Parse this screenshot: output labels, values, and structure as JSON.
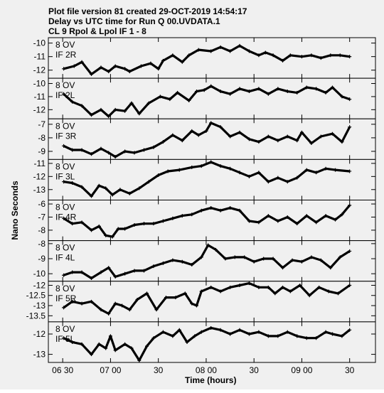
{
  "header": {
    "line1": "Plot file version 81  created 29-OCT-2019 14:54:17",
    "line2": "Delay vs UTC time for Run Q 00.UVDATA.1",
    "line3": "CL 9  Rpol & Lpol  IF 1 - 8"
  },
  "chart_data": {
    "type": "line",
    "xlabel": "Time (hours)",
    "ylabel": "Nano Seconds",
    "xlim": [
      6.35,
      9.77
    ],
    "xticks": [
      {
        "value": 6.5,
        "label": "06 30"
      },
      {
        "value": 7.0,
        "label": "07 00"
      },
      {
        "value": 7.5,
        "label": "30"
      },
      {
        "value": 8.0,
        "label": "08 00"
      },
      {
        "value": 8.5,
        "label": "30"
      },
      {
        "value": 9.0,
        "label": "09 00"
      },
      {
        "value": 9.5,
        "label": "30"
      }
    ],
    "panels": [
      {
        "label1": "8 OV",
        "label2": "IF 2R",
        "ylim": [
          -9.6,
          -12.6
        ],
        "yticks": [
          -10,
          -11,
          -12
        ],
        "points": [
          [
            6.51,
            -11.9
          ],
          [
            6.62,
            -11.7
          ],
          [
            6.7,
            -11.4
          ],
          [
            6.8,
            -12.3
          ],
          [
            6.9,
            -11.8
          ],
          [
            6.98,
            -12.1
          ],
          [
            7.05,
            -11.7
          ],
          [
            7.15,
            -11.9
          ],
          [
            7.2,
            -12.1
          ],
          [
            7.32,
            -11.7
          ],
          [
            7.42,
            -11.5
          ],
          [
            7.5,
            -11.9
          ],
          [
            7.55,
            -11.3
          ],
          [
            7.65,
            -10.9
          ],
          [
            7.75,
            -11.4
          ],
          [
            7.82,
            -10.9
          ],
          [
            7.92,
            -10.5
          ],
          [
            8.05,
            -10.6
          ],
          [
            8.15,
            -10.3
          ],
          [
            8.25,
            -10.6
          ],
          [
            8.35,
            -10.2
          ],
          [
            8.45,
            -10.6
          ],
          [
            8.55,
            -10.9
          ],
          [
            8.62,
            -10.7
          ],
          [
            8.7,
            -10.9
          ],
          [
            8.8,
            -11.3
          ],
          [
            8.88,
            -10.9
          ],
          [
            9.0,
            -11.0
          ],
          [
            9.1,
            -10.9
          ],
          [
            9.2,
            -11.1
          ],
          [
            9.3,
            -10.9
          ],
          [
            9.4,
            -10.9
          ],
          [
            9.5,
            -11.0
          ]
        ]
      },
      {
        "label1": "8 OV",
        "label2": "IF 2L",
        "ylim": [
          -9.6,
          -12.7
        ],
        "yticks": [
          -10,
          -11,
          -12
        ],
        "points": [
          [
            6.51,
            -10.8
          ],
          [
            6.6,
            -11.4
          ],
          [
            6.7,
            -11.7
          ],
          [
            6.8,
            -12.4
          ],
          [
            6.9,
            -12.0
          ],
          [
            6.98,
            -12.5
          ],
          [
            7.05,
            -12.0
          ],
          [
            7.15,
            -12.1
          ],
          [
            7.22,
            -11.5
          ],
          [
            7.3,
            -12.3
          ],
          [
            7.4,
            -11.5
          ],
          [
            7.52,
            -11.0
          ],
          [
            7.62,
            -11.2
          ],
          [
            7.7,
            -10.7
          ],
          [
            7.82,
            -11.3
          ],
          [
            7.9,
            -10.6
          ],
          [
            7.98,
            -10.5
          ],
          [
            8.05,
            -10.2
          ],
          [
            8.15,
            -10.6
          ],
          [
            8.25,
            -10.8
          ],
          [
            8.35,
            -10.4
          ],
          [
            8.45,
            -10.6
          ],
          [
            8.55,
            -10.4
          ],
          [
            8.65,
            -10.8
          ],
          [
            8.75,
            -10.4
          ],
          [
            8.85,
            -10.6
          ],
          [
            8.95,
            -10.7
          ],
          [
            9.05,
            -10.3
          ],
          [
            9.15,
            -10.4
          ],
          [
            9.25,
            -10.7
          ],
          [
            9.32,
            -10.3
          ],
          [
            9.42,
            -11.0
          ],
          [
            9.5,
            -11.2
          ]
        ]
      },
      {
        "label1": "8 OV",
        "label2": "IF 3R",
        "ylim": [
          -6.6,
          -9.6
        ],
        "yticks": [
          -7,
          -8,
          -9
        ],
        "points": [
          [
            6.51,
            -8.6
          ],
          [
            6.6,
            -8.9
          ],
          [
            6.7,
            -8.9
          ],
          [
            6.8,
            -9.2
          ],
          [
            6.9,
            -8.8
          ],
          [
            6.98,
            -9.1
          ],
          [
            7.05,
            -9.4
          ],
          [
            7.15,
            -9.0
          ],
          [
            7.25,
            -9.1
          ],
          [
            7.35,
            -8.9
          ],
          [
            7.45,
            -8.7
          ],
          [
            7.55,
            -8.3
          ],
          [
            7.65,
            -7.8
          ],
          [
            7.75,
            -8.2
          ],
          [
            7.85,
            -7.5
          ],
          [
            7.92,
            -7.8
          ],
          [
            8.0,
            -7.5
          ],
          [
            8.05,
            -6.9
          ],
          [
            8.15,
            -7.2
          ],
          [
            8.25,
            -7.9
          ],
          [
            8.35,
            -7.6
          ],
          [
            8.45,
            -8.1
          ],
          [
            8.55,
            -8.3
          ],
          [
            8.65,
            -7.9
          ],
          [
            8.75,
            -8.2
          ],
          [
            8.85,
            -7.9
          ],
          [
            8.95,
            -8.2
          ],
          [
            9.0,
            -7.6
          ],
          [
            9.1,
            -8.4
          ],
          [
            9.2,
            -7.9
          ],
          [
            9.32,
            -7.7
          ],
          [
            9.42,
            -8.3
          ],
          [
            9.5,
            -7.2
          ]
        ]
      },
      {
        "label1": "8 OV",
        "label2": "IF 3L",
        "ylim": [
          -10.7,
          -13.8
        ],
        "yticks": [
          -11,
          -12,
          -13
        ],
        "points": [
          [
            6.51,
            -12.4
          ],
          [
            6.6,
            -12.5
          ],
          [
            6.7,
            -12.8
          ],
          [
            6.8,
            -13.5
          ],
          [
            6.88,
            -12.7
          ],
          [
            6.95,
            -12.9
          ],
          [
            7.02,
            -13.4
          ],
          [
            7.1,
            -13.0
          ],
          [
            7.2,
            -13.3
          ],
          [
            7.3,
            -12.9
          ],
          [
            7.4,
            -12.4
          ],
          [
            7.5,
            -11.9
          ],
          [
            7.6,
            -11.6
          ],
          [
            7.72,
            -11.5
          ],
          [
            7.85,
            -11.3
          ],
          [
            7.95,
            -11.2
          ],
          [
            8.05,
            -10.9
          ],
          [
            8.15,
            -11.2
          ],
          [
            8.25,
            -11.4
          ],
          [
            8.35,
            -11.7
          ],
          [
            8.45,
            -12.0
          ],
          [
            8.55,
            -11.7
          ],
          [
            8.65,
            -12.4
          ],
          [
            8.75,
            -12.1
          ],
          [
            8.85,
            -12.4
          ],
          [
            8.95,
            -12.1
          ],
          [
            9.05,
            -11.5
          ],
          [
            9.15,
            -11.7
          ],
          [
            9.25,
            -11.4
          ],
          [
            9.35,
            -11.5
          ],
          [
            9.5,
            -11.6
          ]
        ]
      },
      {
        "label1": "8 OV",
        "label2": "IF 4R",
        "ylim": [
          -5.7,
          -8.8
        ],
        "yticks": [
          -6,
          -7,
          -8
        ],
        "points": [
          [
            6.51,
            -7.1
          ],
          [
            6.6,
            -7.5
          ],
          [
            6.7,
            -7.4
          ],
          [
            6.8,
            -8.0
          ],
          [
            6.88,
            -7.7
          ],
          [
            6.95,
            -8.4
          ],
          [
            7.02,
            -8.5
          ],
          [
            7.08,
            -7.9
          ],
          [
            7.15,
            -7.9
          ],
          [
            7.25,
            -7.6
          ],
          [
            7.35,
            -7.5
          ],
          [
            7.45,
            -7.5
          ],
          [
            7.55,
            -7.3
          ],
          [
            7.65,
            -7.1
          ],
          [
            7.75,
            -6.9
          ],
          [
            7.85,
            -6.8
          ],
          [
            7.95,
            -6.5
          ],
          [
            8.05,
            -6.3
          ],
          [
            8.15,
            -6.5
          ],
          [
            8.25,
            -6.3
          ],
          [
            8.35,
            -6.5
          ],
          [
            8.45,
            -7.3
          ],
          [
            8.55,
            -7.4
          ],
          [
            8.65,
            -6.9
          ],
          [
            8.75,
            -7.3
          ],
          [
            8.85,
            -7.0
          ],
          [
            8.95,
            -7.5
          ],
          [
            9.05,
            -6.9
          ],
          [
            9.15,
            -7.4
          ],
          [
            9.25,
            -6.9
          ],
          [
            9.35,
            -7.2
          ],
          [
            9.42,
            -6.8
          ],
          [
            9.5,
            -6.1
          ]
        ]
      },
      {
        "label1": "8 OV",
        "label2": "IF 4L",
        "ylim": [
          -7.8,
          -10.5
        ],
        "yticks": [
          -8,
          -9,
          -10
        ],
        "points": [
          [
            6.51,
            -10.1
          ],
          [
            6.6,
            -9.9
          ],
          [
            6.7,
            -9.9
          ],
          [
            6.8,
            -10.3
          ],
          [
            6.9,
            -9.9
          ],
          [
            6.98,
            -9.6
          ],
          [
            7.05,
            -10.2
          ],
          [
            7.15,
            -10.0
          ],
          [
            7.25,
            -9.8
          ],
          [
            7.35,
            -9.8
          ],
          [
            7.45,
            -9.5
          ],
          [
            7.55,
            -9.3
          ],
          [
            7.65,
            -9.1
          ],
          [
            7.75,
            -9.2
          ],
          [
            7.85,
            -9.4
          ],
          [
            7.95,
            -8.9
          ],
          [
            8.02,
            -8.1
          ],
          [
            8.1,
            -8.4
          ],
          [
            8.2,
            -9.0
          ],
          [
            8.3,
            -8.9
          ],
          [
            8.4,
            -8.9
          ],
          [
            8.5,
            -9.2
          ],
          [
            8.6,
            -9.0
          ],
          [
            8.7,
            -9.0
          ],
          [
            8.8,
            -9.6
          ],
          [
            8.9,
            -9.1
          ],
          [
            9.0,
            -9.2
          ],
          [
            9.1,
            -8.9
          ],
          [
            9.2,
            -9.1
          ],
          [
            9.3,
            -9.6
          ],
          [
            9.4,
            -8.9
          ],
          [
            9.5,
            -8.5
          ]
        ]
      },
      {
        "label1": "8 OV",
        "label2": "IF 5R",
        "ylim": [
          -11.8,
          -13.8
        ],
        "yticks": [
          -12.0,
          -12.5,
          -13.0,
          -13.5
        ],
        "points": [
          [
            6.51,
            -13.1
          ],
          [
            6.6,
            -12.8
          ],
          [
            6.7,
            -12.9
          ],
          [
            6.8,
            -12.8
          ],
          [
            6.9,
            -13.2
          ],
          [
            6.98,
            -13.4
          ],
          [
            7.05,
            -12.9
          ],
          [
            7.12,
            -13.0
          ],
          [
            7.2,
            -13.2
          ],
          [
            7.28,
            -12.7
          ],
          [
            7.38,
            -12.4
          ],
          [
            7.48,
            -13.2
          ],
          [
            7.58,
            -12.6
          ],
          [
            7.68,
            -12.6
          ],
          [
            7.78,
            -12.4
          ],
          [
            7.85,
            -12.9
          ],
          [
            7.9,
            -13.0
          ],
          [
            7.95,
            -12.3
          ],
          [
            8.05,
            -12.1
          ],
          [
            8.15,
            -12.3
          ],
          [
            8.25,
            -12.1
          ],
          [
            8.35,
            -12.0
          ],
          [
            8.45,
            -11.9
          ],
          [
            8.55,
            -12.1
          ],
          [
            8.65,
            -12.1
          ],
          [
            8.72,
            -12.4
          ],
          [
            8.8,
            -12.1
          ],
          [
            8.88,
            -12.3
          ],
          [
            8.98,
            -12.0
          ],
          [
            9.08,
            -12.5
          ],
          [
            9.18,
            -12.1
          ],
          [
            9.28,
            -12.3
          ],
          [
            9.38,
            -12.4
          ],
          [
            9.5,
            -12.0
          ]
        ]
      },
      {
        "label1": "8 OV",
        "label2": "IF 5L",
        "ylim": [
          -11.4,
          -13.4
        ],
        "yticks": [
          -12,
          -13
        ],
        "points": [
          [
            6.51,
            -12.2
          ],
          [
            6.6,
            -12.4
          ],
          [
            6.7,
            -12.5
          ],
          [
            6.8,
            -13.0
          ],
          [
            6.88,
            -12.5
          ],
          [
            6.95,
            -12.7
          ],
          [
            7.0,
            -12.1
          ],
          [
            7.05,
            -12.8
          ],
          [
            7.15,
            -12.5
          ],
          [
            7.22,
            -12.7
          ],
          [
            7.3,
            -13.3
          ],
          [
            7.38,
            -12.6
          ],
          [
            7.45,
            -12.2
          ],
          [
            7.55,
            -11.9
          ],
          [
            7.65,
            -12.1
          ],
          [
            7.72,
            -11.8
          ],
          [
            7.8,
            -12.4
          ],
          [
            7.88,
            -12.1
          ],
          [
            7.95,
            -11.9
          ],
          [
            8.05,
            -11.7
          ],
          [
            8.15,
            -11.8
          ],
          [
            8.25,
            -12.0
          ],
          [
            8.35,
            -11.8
          ],
          [
            8.45,
            -12.0
          ],
          [
            8.55,
            -11.9
          ],
          [
            8.65,
            -12.1
          ],
          [
            8.75,
            -12.1
          ],
          [
            8.85,
            -11.9
          ],
          [
            8.95,
            -12.1
          ],
          [
            9.05,
            -12.2
          ],
          [
            9.15,
            -12.2
          ],
          [
            9.25,
            -11.9
          ],
          [
            9.32,
            -12.0
          ],
          [
            9.42,
            -12.1
          ],
          [
            9.5,
            -11.8
          ]
        ]
      }
    ]
  }
}
